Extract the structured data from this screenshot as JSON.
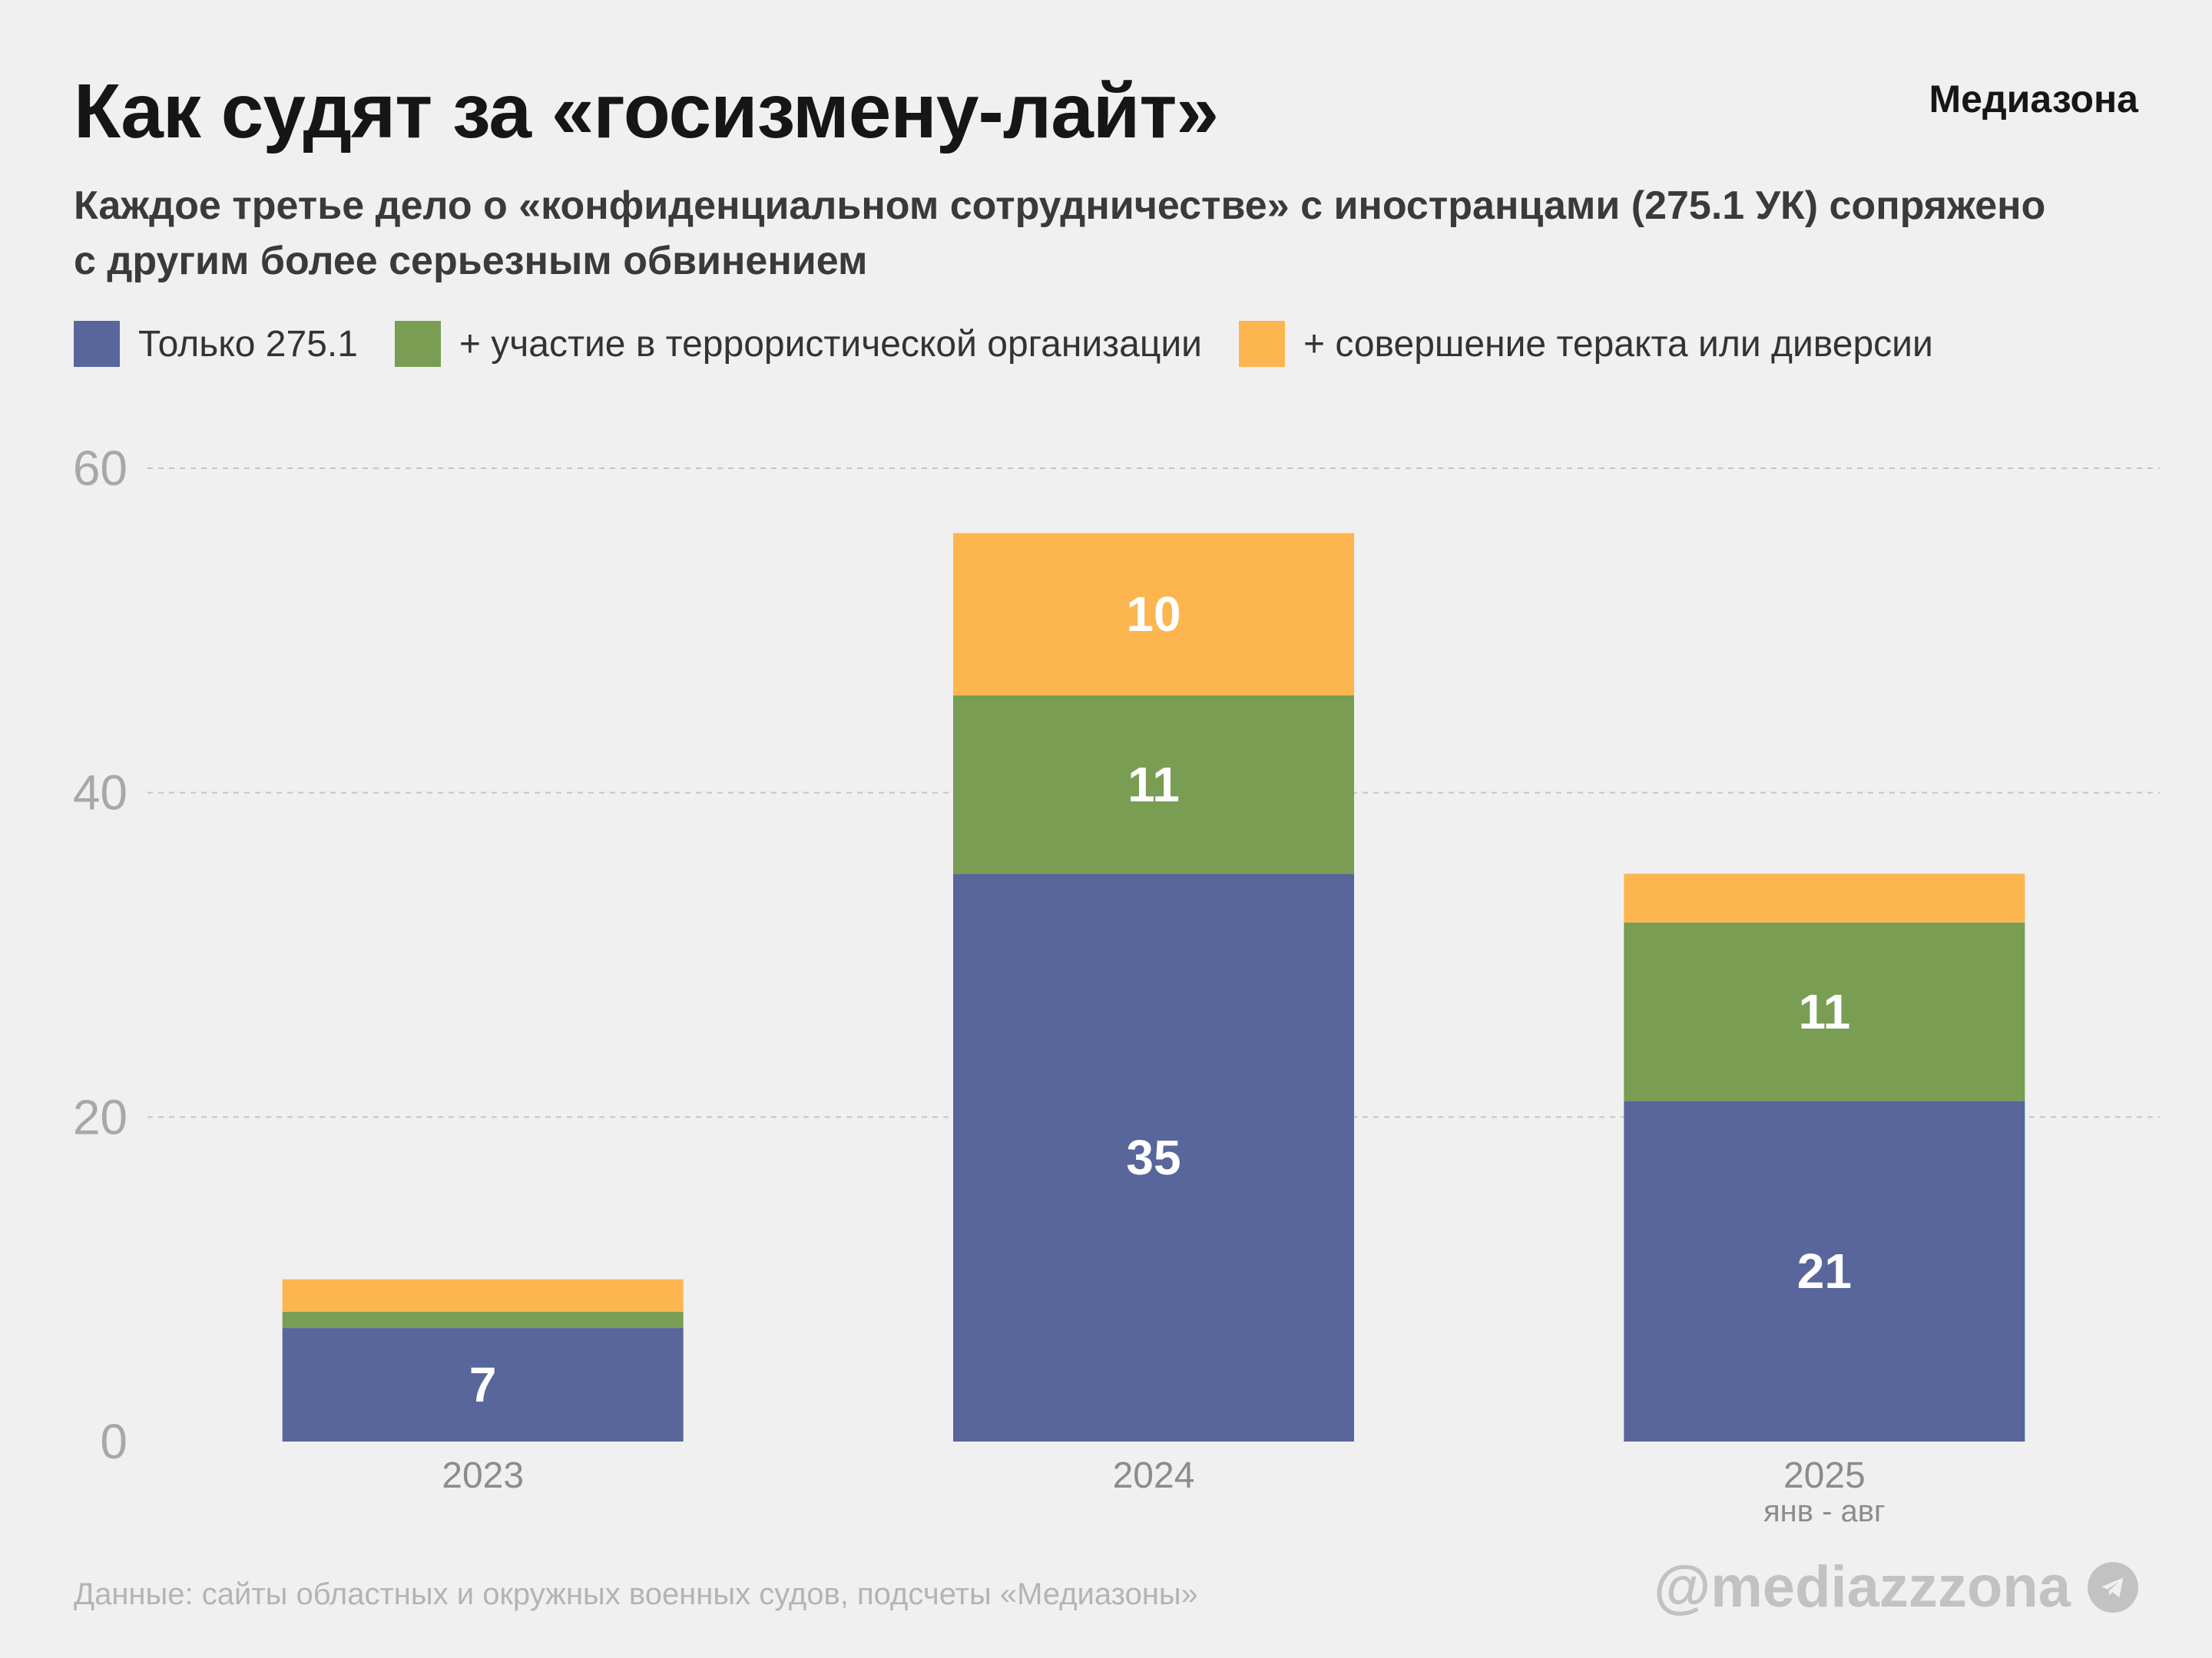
{
  "header": {
    "title": "Как судят за «госизмену-лайт»",
    "brand": "Медиазона",
    "subtitle": "Каждое третье дело о «конфиденциальном сотрудничестве» с иностранцами (275.1 УК) сопряжено с другим более серьезным обвинением"
  },
  "legend": [
    {
      "label": "Только 275.1",
      "color": "#58669b"
    },
    {
      "label": "+ участие в террористической организации",
      "color": "#799d53"
    },
    {
      "label": "+ совершение теракта или диверсии",
      "color": "#fdb64f"
    }
  ],
  "chart_data": {
    "type": "bar",
    "stacked": true,
    "categories": [
      "2023",
      "2024",
      "2025"
    ],
    "category_sublabels": [
      "",
      "",
      "янв - авг"
    ],
    "series": [
      {
        "name": "Только 275.1",
        "color": "#58669b",
        "values": [
          7,
          35,
          21
        ],
        "labels": [
          "7",
          "35",
          "21"
        ]
      },
      {
        "name": "+ участие в террористической организации",
        "color": "#799d53",
        "values": [
          1,
          11,
          11
        ],
        "labels": [
          "",
          "11",
          "11"
        ]
      },
      {
        "name": "+ совершение теракта или диверсии",
        "color": "#fdb64f",
        "values": [
          2,
          10,
          3
        ],
        "labels": [
          "",
          "10",
          ""
        ]
      }
    ],
    "yticks": [
      0,
      20,
      40,
      60
    ],
    "ylim": [
      0,
      60
    ],
    "grid": true,
    "legend_position": "top-left"
  },
  "footer": {
    "source": "Данные: сайты областных и окружных военных судов, подсчеты «Медиазоны»",
    "handle": "@mediazzzona",
    "handle_icon": "telegram-icon"
  }
}
